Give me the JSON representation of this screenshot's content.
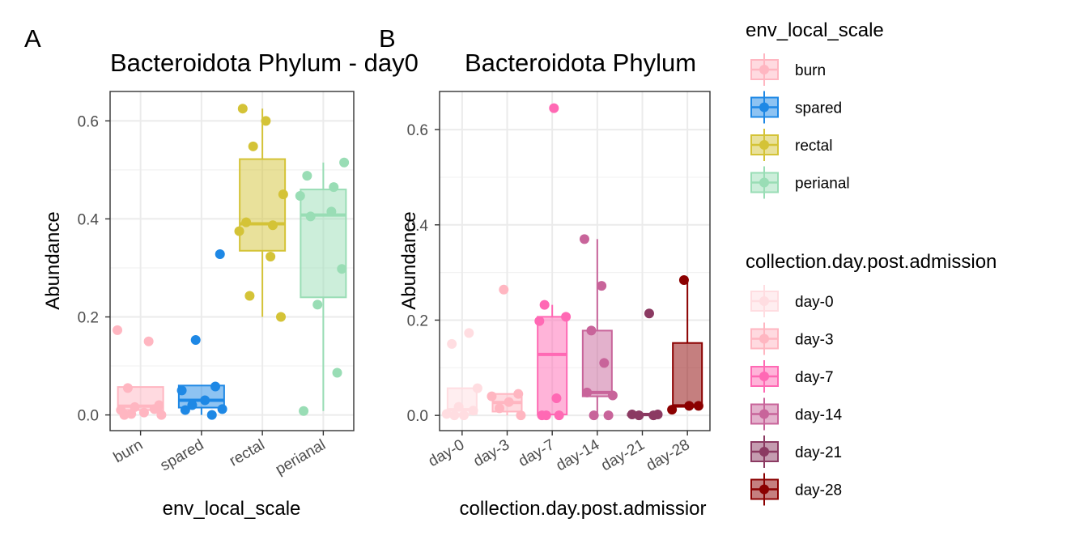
{
  "chart_data": [
    {
      "panel_tag": "A",
      "type": "box",
      "title": "Bacteroidota Phylum - day0",
      "xlabel": "env_local_scale",
      "ylabel": "Abundance",
      "categories": [
        "burn",
        "spared",
        "rectal",
        "perianal"
      ],
      "ylim": [
        -0.032,
        0.66
      ],
      "yticks": [
        0.0,
        0.2,
        0.4,
        0.6
      ],
      "ytick_labels": [
        "0.0",
        "0.2",
        "0.4",
        "0.6"
      ],
      "grid": true,
      "boxes": [
        {
          "category": "burn",
          "color": "#FFB6C1",
          "q1": 0.01,
          "median": 0.018,
          "q3": 0.057,
          "whisker_low": 0.0,
          "whisker_high": 0.057
        },
        {
          "category": "spared",
          "color": "#1E88E5",
          "q1": 0.015,
          "median": 0.03,
          "q3": 0.06,
          "whisker_low": 0.0,
          "whisker_high": 0.06
        },
        {
          "category": "rectal",
          "color": "#D4C337",
          "q1": 0.335,
          "median": 0.39,
          "q3": 0.522,
          "whisker_low": 0.2,
          "whisker_high": 0.625
        },
        {
          "category": "perianal",
          "color": "#99DDB5",
          "q1": 0.24,
          "median": 0.408,
          "q3": 0.46,
          "whisker_low": 0.008,
          "whisker_high": 0.515
        }
      ],
      "points": [
        {
          "category": "burn",
          "values": [
            0.173,
            0.15,
            0.055,
            0.02,
            0.016,
            0.012,
            0.01,
            0.005,
            0.002,
            0.0,
            0.0
          ]
        },
        {
          "category": "spared",
          "values": [
            0.328,
            0.153,
            0.058,
            0.05,
            0.03,
            0.02,
            0.012,
            0.01,
            0.0
          ]
        },
        {
          "category": "rectal",
          "values": [
            0.625,
            0.6,
            0.548,
            0.45,
            0.393,
            0.387,
            0.375,
            0.323,
            0.243,
            0.2
          ]
        },
        {
          "category": "perianal",
          "values": [
            0.515,
            0.488,
            0.465,
            0.447,
            0.415,
            0.405,
            0.298,
            0.225,
            0.086,
            0.008
          ]
        }
      ]
    },
    {
      "panel_tag": "B",
      "type": "box",
      "title": "Bacteroidota Phylum",
      "xlabel": "collection.day.post.admissior",
      "ylabel": "Abundance",
      "categories": [
        "day-0",
        "day-3",
        "day-7",
        "day-14",
        "day-21",
        "day-28"
      ],
      "ylim": [
        -0.032,
        0.68
      ],
      "yticks": [
        0.0,
        0.2,
        0.4,
        0.6
      ],
      "ytick_labels": [
        "0.0",
        "0.2",
        "0.4",
        "0.6"
      ],
      "grid": true,
      "boxes": [
        {
          "category": "day-0",
          "color": "#FFDDE1",
          "q1": 0.003,
          "median": 0.012,
          "q3": 0.057,
          "whisker_low": 0.0,
          "whisker_high": 0.057
        },
        {
          "category": "day-3",
          "color": "#FFB6C1",
          "q1": 0.008,
          "median": 0.027,
          "q3": 0.045,
          "whisker_low": 0.0,
          "whisker_high": 0.045
        },
        {
          "category": "day-7",
          "color": "#FF69B4",
          "q1": 0.002,
          "median": 0.128,
          "q3": 0.207,
          "whisker_low": 0.0,
          "whisker_high": 0.232
        },
        {
          "category": "day-14",
          "color": "#C8649A",
          "q1": 0.04,
          "median": 0.048,
          "q3": 0.178,
          "whisker_low": 0.0,
          "whisker_high": 0.37
        },
        {
          "category": "day-21",
          "color": "#8B3A62",
          "q1": 0.0,
          "median": 0.002,
          "q3": 0.003,
          "whisker_low": 0.0,
          "whisker_high": 0.003
        },
        {
          "category": "day-28",
          "color": "#8B0000",
          "q1": 0.018,
          "median": 0.02,
          "q3": 0.152,
          "whisker_low": 0.012,
          "whisker_high": 0.284
        }
      ],
      "points": [
        {
          "category": "day-0",
          "values": [
            0.173,
            0.15,
            0.057,
            0.018,
            0.01,
            0.003,
            0.0,
            0.0
          ]
        },
        {
          "category": "day-3",
          "values": [
            0.264,
            0.045,
            0.04,
            0.028,
            0.015,
            0.0
          ]
        },
        {
          "category": "day-7",
          "values": [
            0.645,
            0.232,
            0.207,
            0.198,
            0.036,
            0.0,
            0.0,
            0.0
          ]
        },
        {
          "category": "day-14",
          "values": [
            0.37,
            0.272,
            0.178,
            0.11,
            0.048,
            0.042,
            0.0,
            0.0
          ]
        },
        {
          "category": "day-21",
          "values": [
            0.214,
            0.002,
            0.002,
            0.0,
            0.0
          ]
        },
        {
          "category": "day-28",
          "values": [
            0.284,
            0.02,
            0.012,
            0.02
          ]
        }
      ]
    }
  ],
  "legends": [
    {
      "title": "env_local_scale",
      "items": [
        {
          "label": "burn",
          "color": "#FFB6C1"
        },
        {
          "label": "spared",
          "color": "#1E88E5"
        },
        {
          "label": "rectal",
          "color": "#D4C337"
        },
        {
          "label": "perianal",
          "color": "#99DDB5"
        }
      ]
    },
    {
      "title": "collection.day.post.admission",
      "items": [
        {
          "label": "day-0",
          "color": "#FFDDE1"
        },
        {
          "label": "day-3",
          "color": "#FFB6C1"
        },
        {
          "label": "day-7",
          "color": "#FF69B4"
        },
        {
          "label": "day-14",
          "color": "#C8649A"
        },
        {
          "label": "day-21",
          "color": "#8B3A62"
        },
        {
          "label": "day-28",
          "color": "#8B0000"
        }
      ]
    }
  ]
}
